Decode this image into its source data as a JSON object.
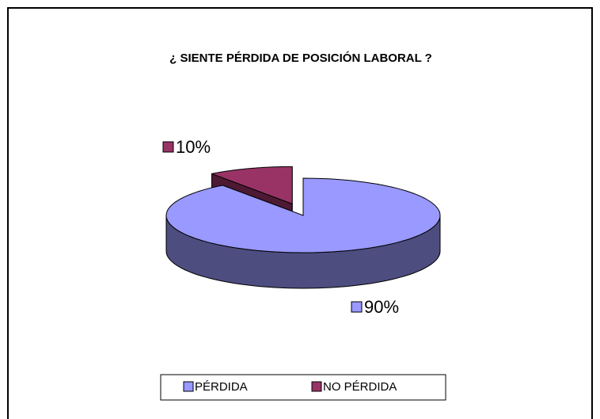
{
  "chart_data": {
    "type": "pie",
    "title": "¿ SIENTE PÉRDIDA DE POSICIÓN LABORAL ?",
    "categories": [
      "PÉRDIDA",
      "NO PÉRDIDA"
    ],
    "values": [
      90,
      10
    ],
    "value_labels": [
      "90%",
      "10%"
    ],
    "colors": [
      "#9999ff",
      "#993366"
    ],
    "legend": "bottom",
    "three_d": true
  }
}
